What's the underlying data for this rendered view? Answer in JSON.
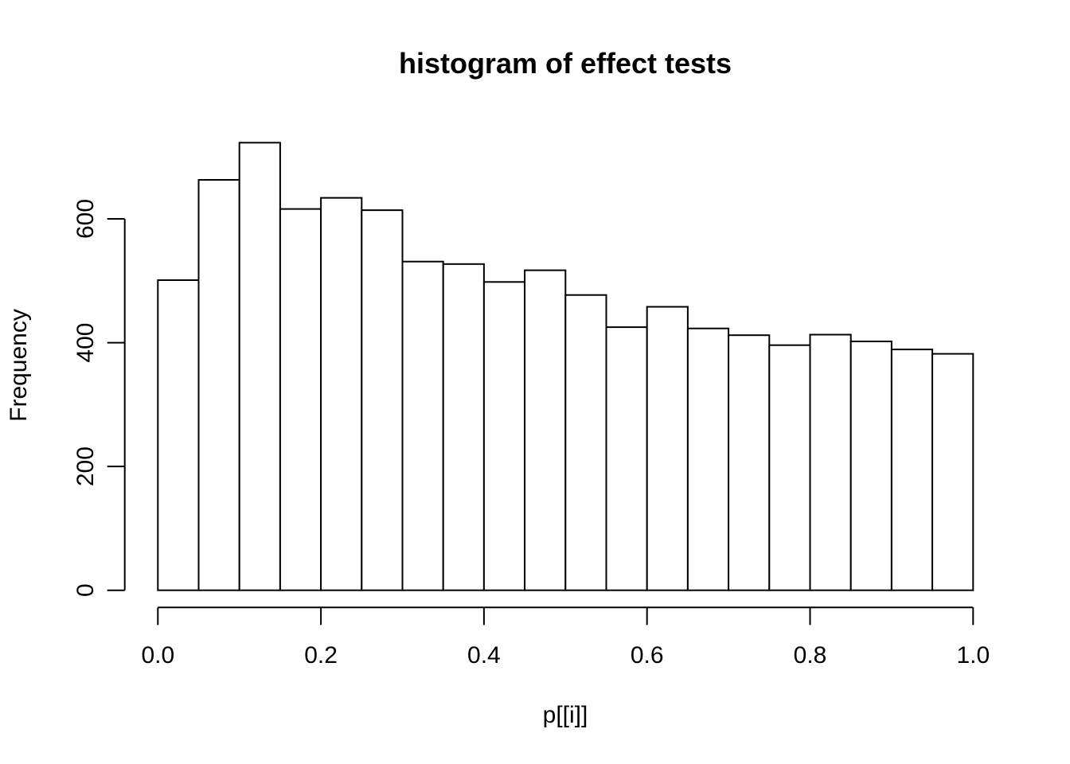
{
  "chart_data": {
    "type": "bar",
    "chart_style": "r-base-histogram",
    "title": "histogram of effect tests",
    "xlabel": "p[[i]]",
    "ylabel": "Frequency",
    "bin_start": 0,
    "bin_width": 0.05,
    "values": [
      501,
      663,
      723,
      616,
      634,
      614,
      531,
      527,
      498,
      517,
      477,
      425,
      458,
      423,
      412,
      396,
      413,
      402,
      389,
      382
    ],
    "xlim": [
      0,
      1
    ],
    "ylim": [
      0,
      730
    ],
    "x_ticks": [
      {
        "v": 0.0,
        "label": "0.0"
      },
      {
        "v": 0.2,
        "label": "0.2"
      },
      {
        "v": 0.4,
        "label": "0.4"
      },
      {
        "v": 0.6,
        "label": "0.6"
      },
      {
        "v": 0.8,
        "label": "0.8"
      },
      {
        "v": 1.0,
        "label": "1.0"
      }
    ],
    "y_ticks": [
      {
        "v": 0,
        "label": "0"
      },
      {
        "v": 200,
        "label": "200"
      },
      {
        "v": 400,
        "label": "400"
      },
      {
        "v": 600,
        "label": "600"
      }
    ],
    "grid": false,
    "legend": false,
    "bar_fill": "#ffffff",
    "bar_stroke": "#000000"
  },
  "colors": {
    "background": "#ffffff",
    "text": "#000000",
    "axis": "#000000"
  }
}
